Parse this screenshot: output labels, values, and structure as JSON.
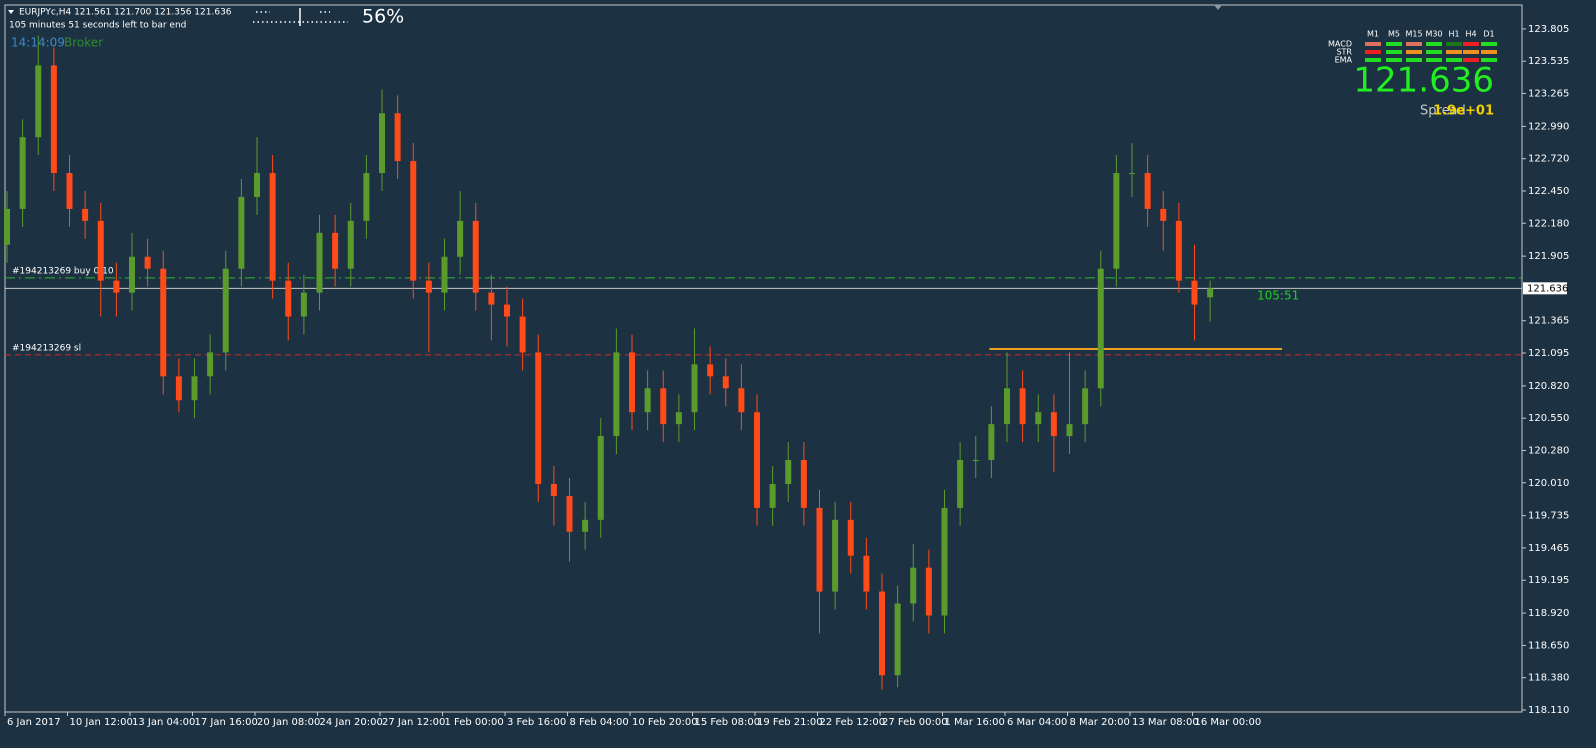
{
  "chart_data": {
    "type": "candlestick",
    "header": "EURJPYc,H4  121.561 121.700 121.356 121.636",
    "timer_text": "105 minutes 51 seconds left to bar end",
    "clock": "14:14:09",
    "broker": "Broker",
    "progress": "56%",
    "countdown": "105:51",
    "up_color": "#5b9b2e",
    "down_color": "#ff4a1a",
    "categories": [
      "6 Jan 2017",
      null,
      null,
      null,
      "10 Jan 12:00",
      null,
      null,
      null,
      "13 Jan 04:00",
      null,
      null,
      null,
      "17 Jan 16:00",
      null,
      null,
      null,
      "20 Jan 08:00",
      null,
      null,
      null,
      "24 Jan 20:00",
      null,
      null,
      null,
      "27 Jan 12:00",
      null,
      null,
      null,
      "1 Feb 00:00",
      null,
      null,
      null,
      "3 Feb 16:00",
      null,
      null,
      null,
      "8 Feb 04:00",
      null,
      null,
      null,
      "10 Feb 20:00",
      null,
      null,
      null,
      "15 Feb 08:00",
      null,
      null,
      null,
      "19 Feb 21:00",
      null,
      null,
      null,
      "22 Feb 12:00",
      null,
      null,
      null,
      "27 Feb 00:00",
      null,
      null,
      null,
      "1 Mar 16:00",
      null,
      null,
      null,
      "6 Mar 04:00",
      null,
      null,
      null,
      "8 Mar 20:00",
      null,
      null,
      null,
      "13 Mar 08:00",
      null,
      null,
      null,
      "16 Mar 00:00",
      null
    ],
    "open": [
      122.0,
      122.3,
      122.9,
      123.5,
      122.6,
      122.3,
      122.2,
      121.7,
      121.6,
      121.9,
      121.8,
      120.9,
      120.7,
      120.9,
      121.1,
      121.8,
      122.4,
      122.6,
      121.7,
      121.4,
      121.6,
      122.1,
      121.8,
      122.2,
      122.6,
      123.1,
      122.7,
      121.7,
      121.6,
      121.9,
      122.2,
      121.6,
      121.5,
      121.4,
      121.1,
      120.0,
      119.9,
      119.6,
      119.7,
      120.4,
      121.1,
      120.6,
      120.8,
      120.5,
      120.6,
      121.0,
      120.9,
      120.8,
      120.6,
      119.8,
      120.0,
      120.2,
      119.8,
      119.1,
      119.7,
      119.4,
      119.1,
      118.4,
      119.0,
      119.3,
      118.9,
      119.8,
      120.2,
      120.2,
      120.5,
      120.8,
      120.5,
      120.6,
      120.4,
      120.5,
      120.8,
      121.8,
      122.6,
      122.6,
      122.3,
      122.2,
      121.7,
      121.561
    ],
    "high": [
      122.45,
      123.05,
      123.75,
      123.65,
      122.75,
      122.45,
      122.35,
      121.85,
      122.1,
      122.05,
      121.95,
      121.05,
      121.05,
      121.25,
      121.95,
      122.55,
      122.9,
      122.75,
      121.85,
      121.75,
      122.25,
      122.25,
      122.35,
      122.75,
      123.3,
      123.25,
      122.85,
      121.85,
      122.05,
      122.45,
      122.35,
      121.75,
      121.65,
      121.55,
      121.25,
      120.15,
      120.05,
      119.85,
      120.55,
      121.3,
      121.25,
      120.95,
      120.95,
      120.75,
      121.3,
      121.15,
      121.05,
      121.0,
      120.75,
      120.15,
      120.35,
      120.35,
      119.95,
      119.85,
      119.85,
      119.55,
      119.25,
      119.15,
      119.5,
      119.45,
      119.95,
      120.35,
      120.4,
      120.65,
      121.1,
      120.95,
      120.75,
      120.75,
      121.1,
      120.95,
      121.95,
      122.75,
      122.85,
      122.75,
      122.45,
      122.35,
      122.0,
      121.7
    ],
    "low": [
      121.85,
      122.15,
      122.75,
      122.45,
      122.15,
      122.05,
      121.4,
      121.4,
      121.45,
      121.65,
      120.75,
      120.6,
      120.55,
      120.75,
      120.95,
      121.65,
      122.25,
      121.55,
      121.2,
      121.25,
      121.45,
      121.65,
      121.65,
      122.05,
      122.45,
      122.55,
      121.55,
      121.1,
      121.45,
      121.75,
      121.45,
      121.2,
      121.15,
      120.95,
      119.85,
      119.65,
      119.35,
      119.45,
      119.55,
      120.25,
      120.45,
      120.45,
      120.35,
      120.35,
      120.45,
      120.75,
      120.65,
      120.45,
      119.65,
      119.65,
      119.85,
      119.65,
      118.75,
      118.95,
      119.25,
      118.95,
      118.28,
      118.3,
      118.85,
      118.75,
      118.75,
      119.65,
      120.05,
      120.05,
      120.35,
      120.35,
      120.35,
      120.1,
      120.25,
      120.35,
      120.65,
      121.65,
      122.4,
      122.15,
      121.95,
      121.6,
      121.2,
      121.356
    ],
    "close": [
      122.3,
      122.9,
      123.5,
      122.6,
      122.3,
      122.2,
      121.7,
      121.6,
      121.9,
      121.8,
      120.9,
      120.7,
      120.9,
      121.1,
      121.8,
      122.4,
      122.6,
      121.7,
      121.4,
      121.6,
      122.1,
      121.8,
      122.2,
      122.6,
      123.1,
      122.7,
      121.7,
      121.6,
      121.9,
      122.2,
      121.6,
      121.5,
      121.4,
      121.1,
      120.0,
      119.9,
      119.6,
      119.7,
      120.4,
      121.1,
      120.6,
      120.8,
      120.5,
      120.6,
      121.0,
      120.9,
      120.8,
      120.6,
      119.8,
      120.0,
      120.2,
      119.8,
      119.1,
      119.7,
      119.4,
      119.1,
      118.4,
      119.0,
      119.3,
      118.9,
      119.8,
      120.2,
      120.2,
      120.5,
      120.8,
      120.5,
      120.6,
      120.4,
      120.5,
      120.8,
      121.8,
      122.6,
      122.6,
      122.3,
      122.2,
      121.7,
      121.5,
      121.636
    ],
    "ylim": [
      118.093,
      124.047
    ],
    "yticks": [
      {
        "value": 118.11,
        "label": "118.110"
      },
      {
        "value": 118.38,
        "label": "118.380"
      },
      {
        "value": 118.65,
        "label": "118.650"
      },
      {
        "value": 118.92,
        "label": "118.920"
      },
      119.195,
      119.465,
      119.735,
      {
        "value": 120.01,
        "label": "120.010"
      },
      {
        "value": 120.28,
        "label": "120.280"
      },
      {
        "value": 120.55,
        "label": "120.550"
      },
      {
        "value": 120.82,
        "label": "120.820"
      },
      121.095,
      121.365,
      121.905,
      {
        "value": 122.18,
        "label": "122.180"
      },
      {
        "value": 122.45,
        "label": "122.450"
      },
      {
        "value": 122.72,
        "label": "122.720"
      },
      {
        "value": 122.99,
        "label": "122.990"
      },
      123.265,
      123.535,
      123.805
    ],
    "price_line": 121.636,
    "price_line_color": "#c8c8c8",
    "levels": [
      {
        "label": "#194213269 buy 0.10",
        "value": 121.723,
        "color": "#2fb52f",
        "dash": "10 4 2 4"
      },
      {
        "label": "#194213269 sl",
        "value": 121.079,
        "color": "#d42a2a",
        "dash": "6 4"
      }
    ],
    "support_line": {
      "value": 121.129,
      "color": "#f0a020"
    },
    "panel": {
      "columns": [
        "M1",
        "M5",
        "M15",
        "M30",
        "H1",
        "H4",
        "D1"
      ],
      "rows": [
        {
          "name": "MACD",
          "colors": [
            "#e07060",
            "#22dd22",
            "#e07060",
            "#22dd22",
            "#1a7a1a",
            "#ee2020",
            "#22dd22"
          ]
        },
        {
          "name": "STR",
          "colors": [
            "#ee2020",
            "#22dd22",
            "#f09020",
            "#22dd22",
            "#f09020",
            "#f09020",
            "#f09020"
          ]
        },
        {
          "name": "EMA",
          "colors": [
            "#22dd22",
            "#22dd22",
            "#22dd22",
            "#22dd22",
            "#22dd22",
            "#ee2020",
            "#22dd22"
          ]
        }
      ],
      "spread_label": "Spread",
      "spread_value": "1.9e+01"
    }
  }
}
